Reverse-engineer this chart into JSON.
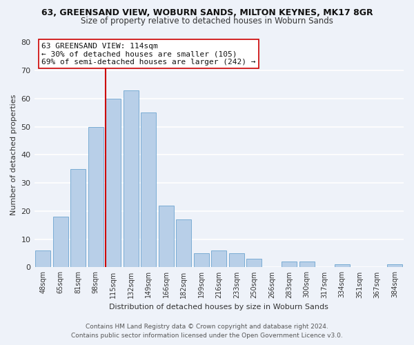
{
  "title": "63, GREENSAND VIEW, WOBURN SANDS, MILTON KEYNES, MK17 8GR",
  "subtitle": "Size of property relative to detached houses in Woburn Sands",
  "xlabel": "Distribution of detached houses by size in Woburn Sands",
  "ylabel": "Number of detached properties",
  "bar_labels": [
    "48sqm",
    "65sqm",
    "81sqm",
    "98sqm",
    "115sqm",
    "132sqm",
    "149sqm",
    "166sqm",
    "182sqm",
    "199sqm",
    "216sqm",
    "233sqm",
    "250sqm",
    "266sqm",
    "283sqm",
    "300sqm",
    "317sqm",
    "334sqm",
    "351sqm",
    "367sqm",
    "384sqm"
  ],
  "bar_values": [
    6,
    18,
    35,
    50,
    60,
    63,
    55,
    22,
    17,
    5,
    6,
    5,
    3,
    0,
    2,
    2,
    0,
    1,
    0,
    0,
    1
  ],
  "bar_color": "#b8cfe8",
  "bar_edge_color": "#7aacd4",
  "background_color": "#eef2f9",
  "grid_color": "#ffffff",
  "annotation_text_line1": "63 GREENSAND VIEW: 114sqm",
  "annotation_text_line2": "← 30% of detached houses are smaller (105)",
  "annotation_text_line3": "69% of semi-detached houses are larger (242) →",
  "annotation_box_color": "#ffffff",
  "annotation_box_edge": "#cc0000",
  "red_line_color": "#cc0000",
  "ylim": [
    0,
    80
  ],
  "yticks": [
    0,
    10,
    20,
    30,
    40,
    50,
    60,
    70,
    80
  ],
  "footer_line1": "Contains HM Land Registry data © Crown copyright and database right 2024.",
  "footer_line2": "Contains public sector information licensed under the Open Government Licence v3.0."
}
